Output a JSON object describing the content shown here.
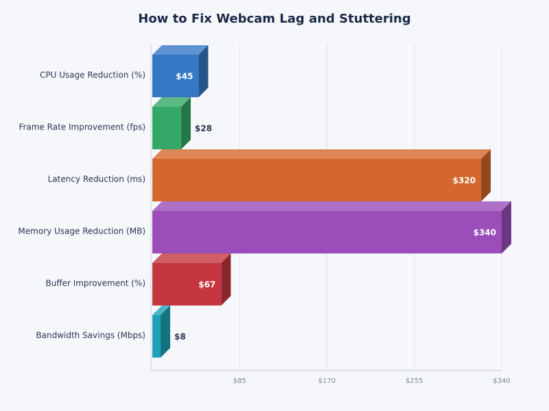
{
  "chart_data": {
    "type": "bar3d_horizontal",
    "title": "How to Fix Webcam Lag and Stuttering",
    "categories": [
      "CPU Usage Reduction (%)",
      "Frame Rate Improvement (fps)",
      "Latency Reduction (ms)",
      "Memory Usage Reduction (MB)",
      "Buffer Improvement (%)",
      "Bandwidth Savings (Mbps)"
    ],
    "values": [
      45,
      28,
      320,
      340,
      67,
      8
    ],
    "value_labels": [
      "$45",
      "$28",
      "$320",
      "$340",
      "$67",
      "$8"
    ],
    "colors": [
      "#3578c6",
      "#34a866",
      "#d4672b",
      "#9b4dba",
      "#c6363f",
      "#1ea3b8"
    ],
    "xlim": [
      0,
      340
    ],
    "xticks": [
      {
        "value": 85,
        "label": "$85"
      },
      {
        "value": 170,
        "label": "$170"
      },
      {
        "value": 255,
        "label": "$255"
      },
      {
        "value": 340,
        "label": "$340"
      }
    ],
    "grid": true
  }
}
